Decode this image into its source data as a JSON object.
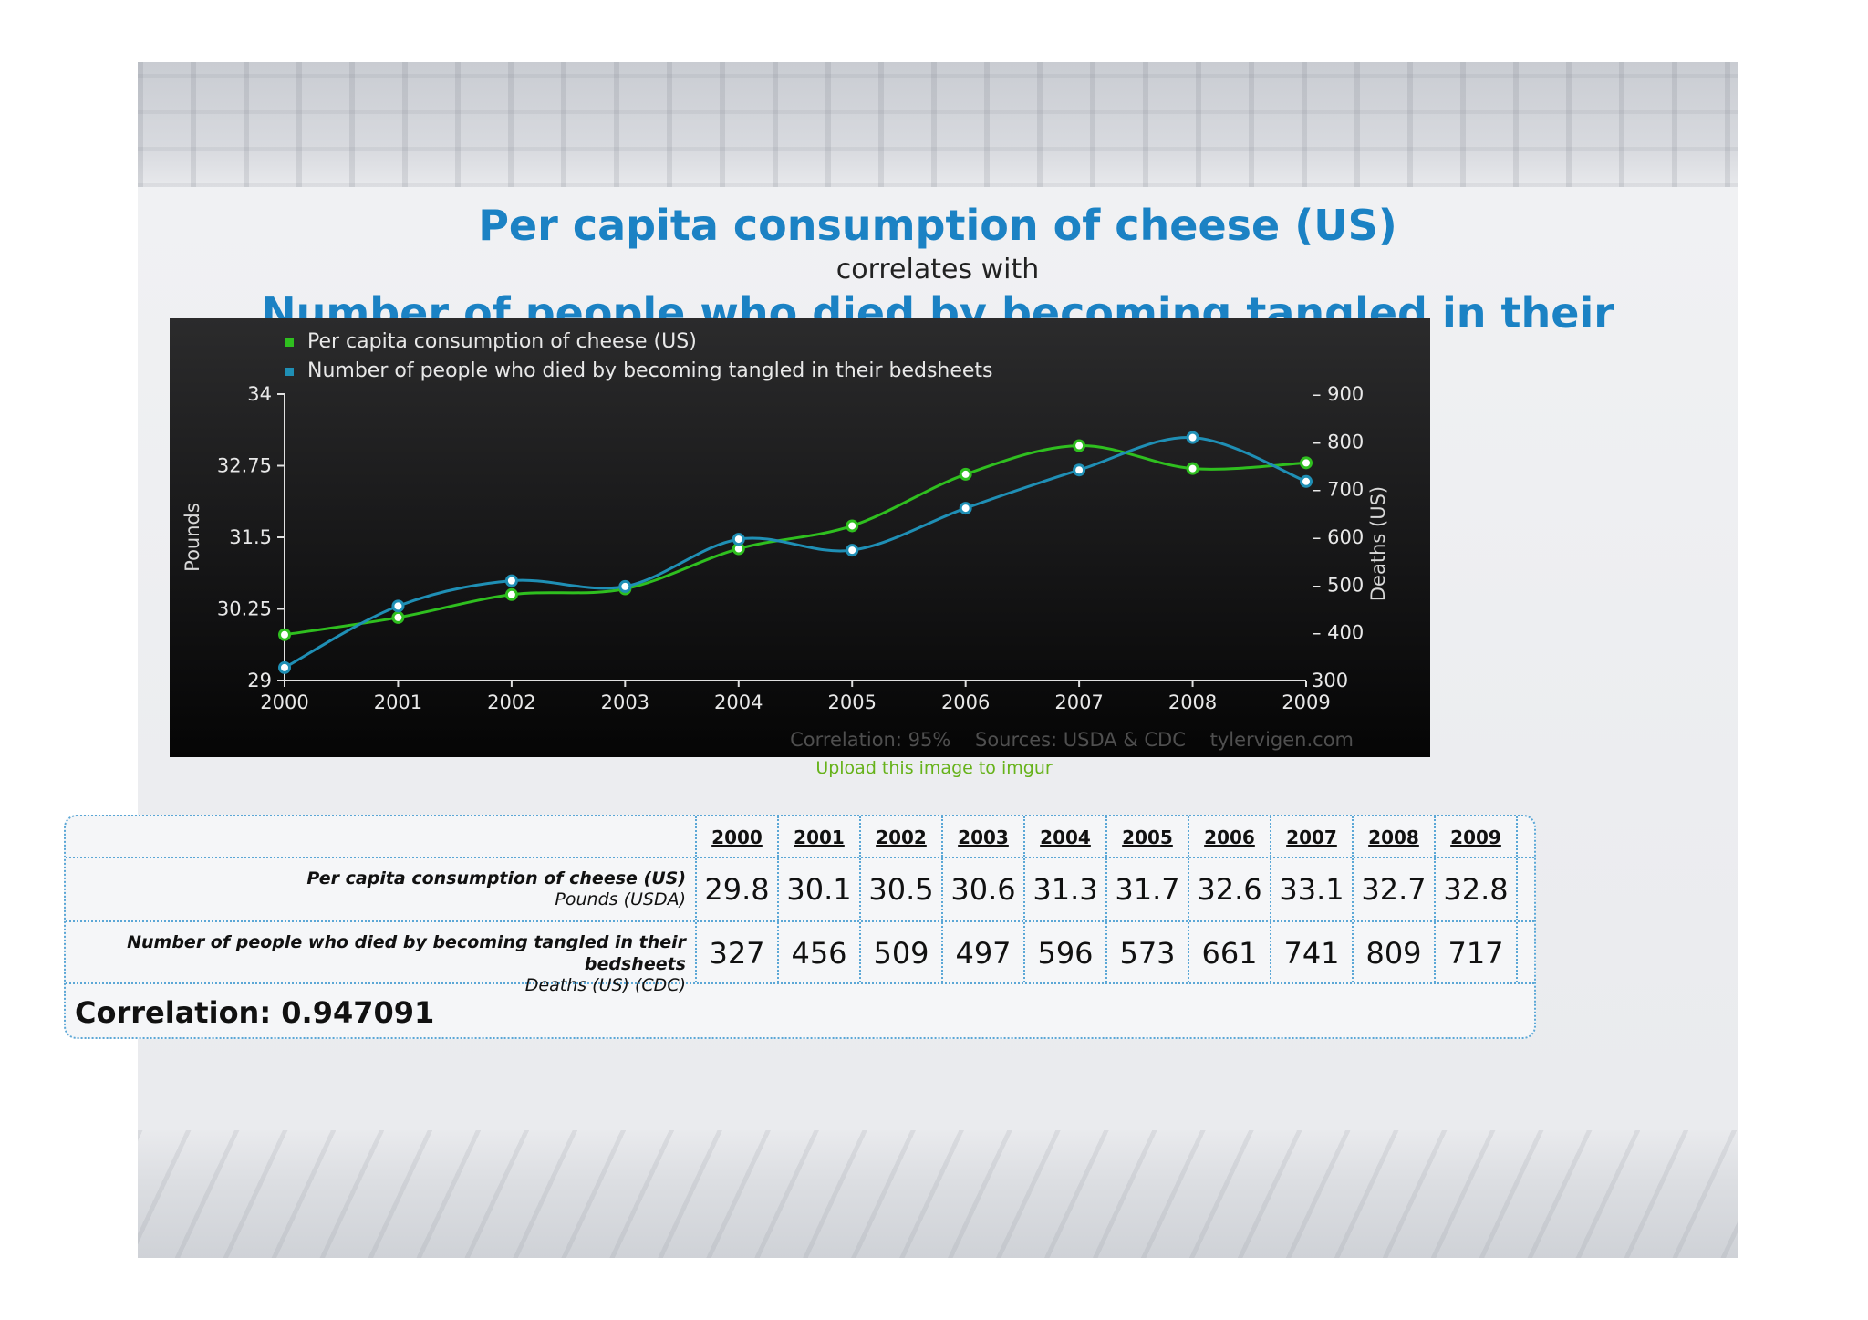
{
  "page": {
    "title_top": "Per capita consumption of cheese (US)",
    "subtitle": "correlates with",
    "title_bottom": "Number of people who died by becoming tangled in their bedsheets",
    "upload_link": "Upload this image to imgur"
  },
  "chart_data": {
    "type": "line",
    "x": [
      2000,
      2001,
      2002,
      2003,
      2004,
      2005,
      2006,
      2007,
      2008,
      2009
    ],
    "series": [
      {
        "name": "Per capita consumption of cheese (US)",
        "axis": "left",
        "color": "#2fbf1f",
        "values": [
          29.8,
          30.1,
          30.5,
          30.6,
          31.3,
          31.7,
          32.6,
          33.1,
          32.7,
          32.8
        ]
      },
      {
        "name": "Number of people who died by becoming tangled in their bedsheets",
        "axis": "right",
        "color": "#1f8fb5",
        "values": [
          327,
          456,
          509,
          497,
          596,
          573,
          661,
          741,
          809,
          717
        ]
      }
    ],
    "left_axis": {
      "label": "Pounds",
      "range": [
        29,
        34
      ],
      "ticks": [
        29,
        30.25,
        31.5,
        32.75,
        34
      ],
      "tick_labels": [
        "29",
        "30.25",
        "31.5",
        "32.75",
        "34"
      ]
    },
    "right_axis": {
      "label": "Deaths (US)",
      "range": [
        300,
        900
      ],
      "ticks": [
        300,
        400,
        500,
        600,
        700,
        800,
        900
      ],
      "tick_labels": [
        "300",
        "– 400",
        "– 500",
        "– 600",
        "– 700",
        "– 800",
        "– 900"
      ]
    },
    "x_tick_labels": [
      "2000",
      "2001",
      "2002",
      "2003",
      "2004",
      "2005",
      "2006",
      "2007",
      "2008",
      "2009"
    ],
    "legend_position": "top-left",
    "footer": "Correlation: 95%    Sources: USDA & CDC    tylervigen.com",
    "grid": false
  },
  "table": {
    "years": [
      "2000",
      "2001",
      "2002",
      "2003",
      "2004",
      "2005",
      "2006",
      "2007",
      "2008",
      "2009"
    ],
    "cheese_label": "Per capita consumption of cheese (US)",
    "cheese_unit": "Pounds (USDA)",
    "cheese_values": [
      "29.8",
      "30.1",
      "30.5",
      "30.6",
      "31.3",
      "31.7",
      "32.6",
      "33.1",
      "32.7",
      "32.8"
    ],
    "deaths_label": "Number of people who died by becoming tangled in their bedsheets",
    "deaths_unit": "Deaths (US) (CDC)",
    "deaths_values": [
      "327",
      "456",
      "509",
      "497",
      "596",
      "573",
      "661",
      "741",
      "809",
      "717"
    ],
    "correlation": "Correlation: 0.947091"
  }
}
